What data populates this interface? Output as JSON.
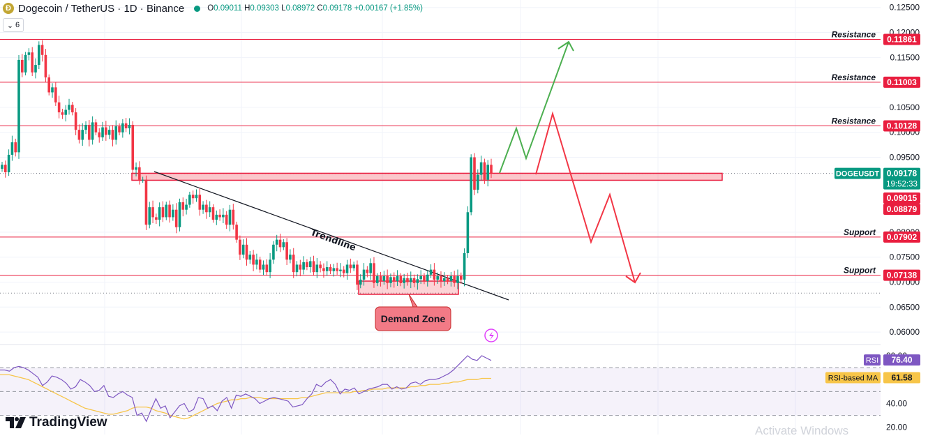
{
  "header": {
    "logo_glyph": "Ð",
    "title": "Dogecoin / TetherUS · 1D · Binance",
    "open_label": "O",
    "open": "0.09011",
    "high_label": "H",
    "high": "0.09303",
    "low_label": "L",
    "low": "0.08972",
    "close_label": "C",
    "close": "0.09178",
    "change": "+0.00167 (+1.85%)"
  },
  "collapse_label": "6",
  "branding": {
    "name": "TradingView"
  },
  "watermark": "Activate Windows",
  "colors": {
    "up": "#089981",
    "down": "#f23645",
    "resistance": "#e91e3f",
    "rsi": "#7e57c2",
    "rsi_ma": "#f7c548",
    "bull_arrow": "#4caf50",
    "bear_arrow": "#f23645"
  },
  "chart_data": [
    {
      "type": "candlestick",
      "title": "Dogecoin / TetherUS · 1D · Binance",
      "ylim": [
        0.0575,
        0.1265
      ],
      "price_ticks": [
        "0.12500",
        "0.12000",
        "0.11500",
        "0.10500",
        "0.10000",
        "0.09500",
        "0.08000",
        "0.07500",
        "0.07000",
        "0.06500",
        "0.06000"
      ],
      "levels": [
        {
          "label": "Resistance",
          "value": 0.11861,
          "text": "0.11861"
        },
        {
          "label": "Resistance",
          "value": 0.11003,
          "text": "0.11003"
        },
        {
          "label": "Resistance",
          "value": 0.10128,
          "text": "0.10128"
        },
        {
          "label": "Support",
          "value": 0.07902,
          "text": "0.07902"
        },
        {
          "label": "Support",
          "value": 0.07138,
          "text": "0.07138"
        }
      ],
      "symbol_tag": {
        "label": "DOGEUSDT",
        "price": "0.09178",
        "countdown": "19:52:33"
      },
      "zone_prices": [
        "0.09015",
        "0.08879"
      ],
      "zone": {
        "top": 0.0918,
        "bottom": 0.0904
      },
      "annotations": {
        "trendline": "Trendline",
        "demand_zone": "Demand Zone"
      },
      "closes": [
        0.0935,
        0.092,
        0.0955,
        0.098,
        0.096,
        0.1145,
        0.112,
        0.1155,
        0.116,
        0.112,
        0.1135,
        0.1175,
        0.1155,
        0.111,
        0.108,
        0.109,
        0.106,
        0.104,
        0.1035,
        0.1045,
        0.1055,
        0.104,
        0.1005,
        0.0985,
        0.1005,
        0.1015,
        0.0985,
        0.102,
        0.1,
        0.099,
        0.101,
        0.0995,
        0.1005,
        0.0985,
        0.1012,
        0.1,
        0.1018,
        0.1008,
        0.1015,
        0.0925,
        0.093,
        0.0905,
        0.0905,
        0.0815,
        0.085,
        0.083,
        0.0825,
        0.085,
        0.083,
        0.0855,
        0.083,
        0.0845,
        0.081,
        0.086,
        0.0845,
        0.0855,
        0.0875,
        0.0868,
        0.0875,
        0.0845,
        0.0855,
        0.084,
        0.085,
        0.0825,
        0.0835,
        0.083,
        0.0835,
        0.0815,
        0.0845,
        0.0815,
        0.0785,
        0.0755,
        0.0775,
        0.0745,
        0.0755,
        0.0735,
        0.0745,
        0.0725,
        0.0735,
        0.072,
        0.0745,
        0.0775,
        0.0785,
        0.077,
        0.078,
        0.0745,
        0.0755,
        0.072,
        0.0735,
        0.0725,
        0.074,
        0.073,
        0.0742,
        0.072,
        0.0735,
        0.0728,
        0.0722,
        0.073,
        0.0722,
        0.0728,
        0.0722,
        0.0725,
        0.0718,
        0.0735,
        0.0728,
        0.0735,
        0.0695,
        0.0705,
        0.0725,
        0.0718,
        0.0738,
        0.0698,
        0.0712,
        0.0702,
        0.0712,
        0.0698,
        0.071,
        0.0702,
        0.0712,
        0.0698,
        0.0708,
        0.07,
        0.0708,
        0.0698,
        0.0706,
        0.0712,
        0.0702,
        0.0715,
        0.0725,
        0.0705,
        0.0712,
        0.0702,
        0.0708,
        0.0702,
        0.0712,
        0.0698,
        0.0712,
        0.0705,
        0.0758,
        0.084,
        0.095,
        0.0885,
        0.0915,
        0.094,
        0.0905,
        0.0935,
        0.0918
      ]
    },
    {
      "type": "line",
      "title": "RSI",
      "ylim": [
        14,
        87
      ],
      "rsi_ticks": [
        "80.00",
        "40.00",
        "20.00"
      ],
      "rsi_label": "RSI",
      "rsi_value": "76.40",
      "ma_label": "RSI-based MA",
      "ma_value": "61.58",
      "series": [
        {
          "name": "RSI",
          "values": [
            68,
            68,
            67,
            70,
            71,
            70,
            68,
            65,
            62,
            55,
            58,
            63,
            62,
            60,
            57,
            52,
            54,
            60,
            58,
            55,
            50,
            51,
            55,
            46,
            45,
            48,
            50,
            47,
            45,
            30,
            32,
            25,
            35,
            44,
            36,
            38,
            28,
            33,
            38,
            40,
            33,
            35,
            45,
            44,
            36,
            38,
            34,
            42,
            45,
            36,
            47,
            46,
            48,
            46,
            44,
            40,
            42,
            44,
            45,
            44,
            43,
            42,
            37,
            38,
            39,
            44,
            48,
            56,
            54,
            58,
            60,
            56,
            48,
            52,
            51,
            53,
            48,
            50,
            52,
            53,
            54,
            56,
            56,
            52,
            54,
            52,
            53,
            57,
            58,
            56,
            59,
            60,
            60,
            61,
            63,
            65,
            68,
            72,
            76,
            80,
            77,
            76,
            80,
            78,
            76
          ]
        },
        {
          "name": "RSI-based MA",
          "values": [
            64,
            64,
            64,
            63,
            62,
            61,
            60,
            58,
            56,
            54,
            52,
            50,
            48,
            46,
            44,
            42,
            40,
            38,
            36,
            35,
            34,
            33,
            32,
            31,
            31,
            32,
            33,
            34,
            36,
            37,
            37,
            37,
            36,
            34,
            33,
            32,
            30,
            29,
            28,
            27,
            28,
            30,
            32,
            34,
            36,
            38,
            40,
            41,
            42,
            43,
            43,
            44,
            44,
            45,
            45,
            45,
            44,
            44,
            44,
            44,
            44,
            44,
            44,
            44,
            45,
            45,
            46,
            47,
            48,
            49,
            49,
            49,
            49,
            49,
            49,
            50,
            50,
            51,
            51,
            52,
            52,
            52,
            53,
            53,
            53,
            53,
            53,
            54,
            54,
            55,
            55,
            56,
            56,
            56,
            57,
            57,
            58,
            58,
            59,
            60,
            60,
            60,
            61,
            61,
            61
          ]
        }
      ]
    }
  ]
}
